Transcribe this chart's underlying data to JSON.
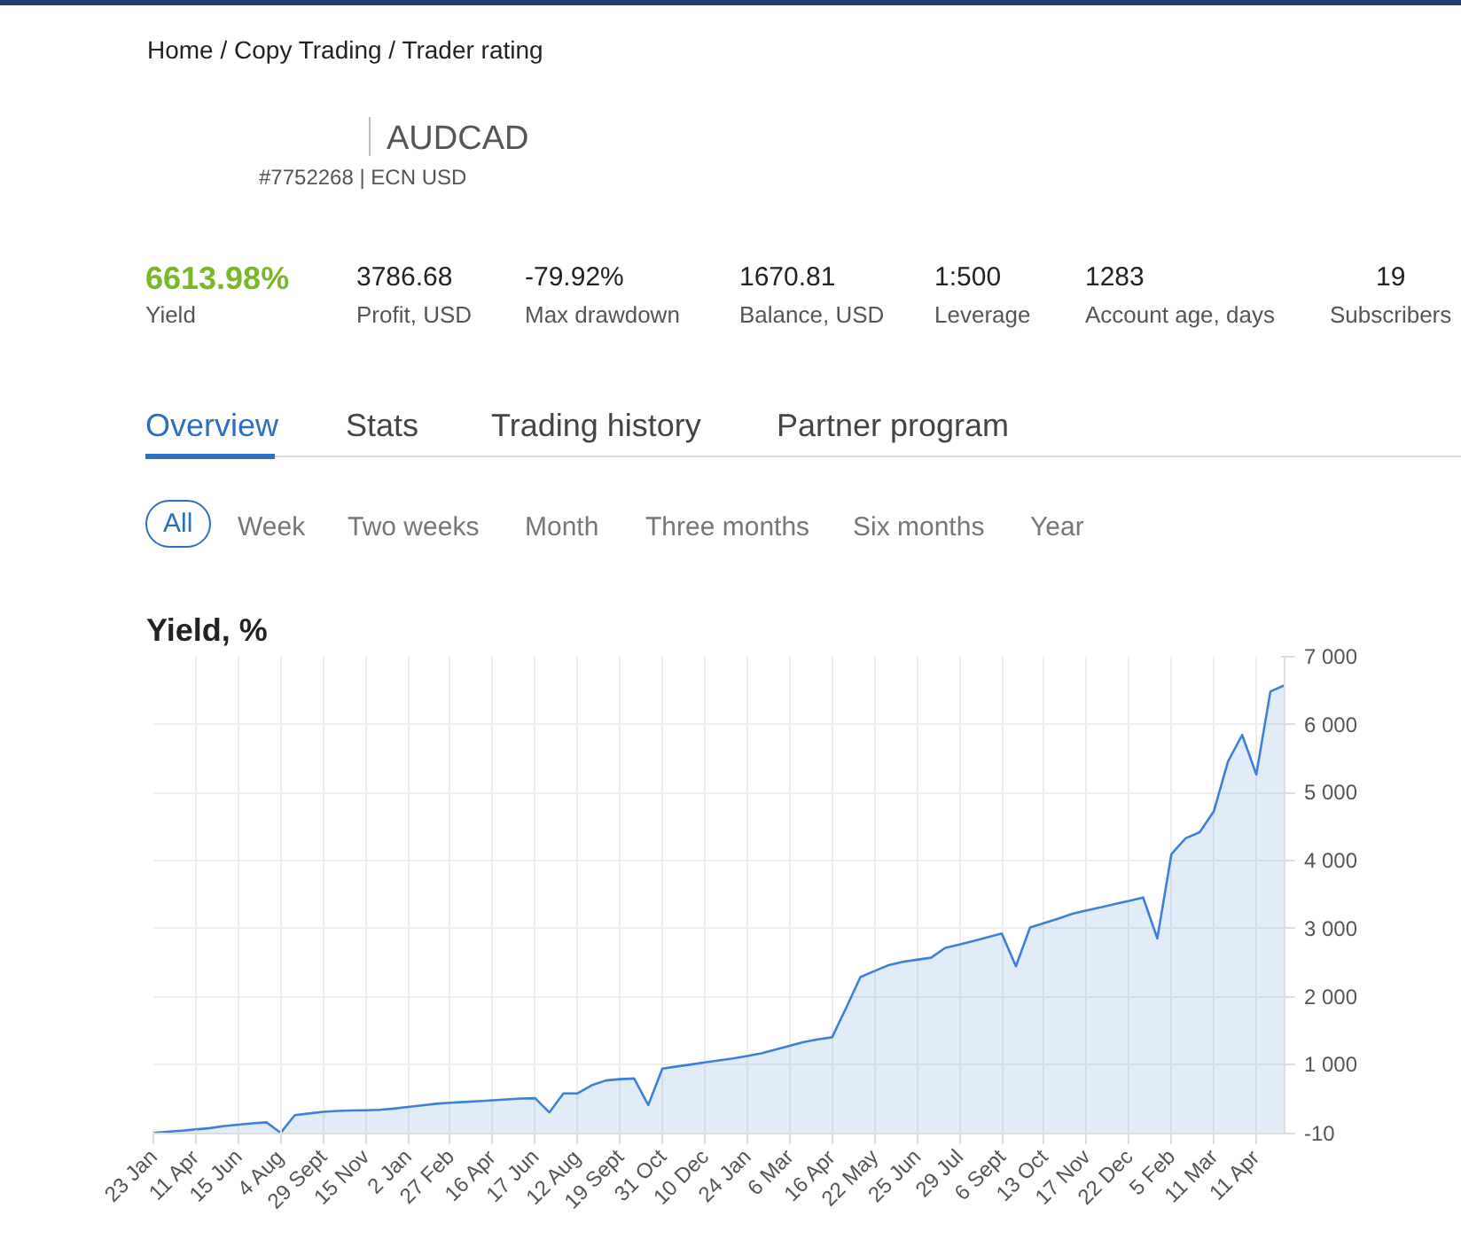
{
  "chart_data": {
    "type": "area",
    "title": "Yield, %",
    "annotations": [
      "Home / Copy Trading / Trader rating",
      "AUDCAD",
      "#7752268 | ECN USD",
      "6613.98%",
      "Yield",
      "3786.68",
      "Profit, USD",
      "-79.92%",
      "Max drawdown",
      "1670.81",
      "Balance, USD",
      "1:500",
      "Leverage",
      "1283",
      "Account age, days",
      "19",
      "Subscribers",
      "Overview",
      "Stats",
      "Trading history",
      "Partner program",
      "All",
      "Week",
      "Two weeks",
      "Month",
      "Three months",
      "Six months",
      "Year"
    ],
    "categories": [
      "23 Jan",
      null,
      null,
      "11 Apr",
      null,
      null,
      "15 Jun",
      null,
      null,
      "4 Aug",
      null,
      null,
      "29 Sept",
      null,
      null,
      "15 Nov",
      null,
      null,
      "2 Jan",
      null,
      null,
      "27 Feb",
      null,
      null,
      "16 Apr",
      null,
      null,
      "17 Jun",
      null,
      null,
      "12 Aug",
      null,
      null,
      "19 Sept",
      null,
      null,
      "31 Oct",
      null,
      null,
      "10 Dec",
      null,
      null,
      "24 Jan",
      null,
      null,
      "6 Mar",
      null,
      null,
      "16 Apr",
      null,
      null,
      "22 May",
      null,
      null,
      "25 Jun",
      null,
      null,
      "29 Jul",
      null,
      null,
      "6 Sept",
      null,
      null,
      "13 Oct",
      null,
      null,
      "17 Nov",
      null,
      null,
      "22 Dec",
      null,
      null,
      "5 Feb",
      null,
      null,
      "11 Mar",
      null,
      null,
      "11 Apr",
      null,
      null
    ],
    "series": [
      {
        "color": "#3d7fd9",
        "values": [
          0,
          17,
          33,
          50,
          70,
          100,
          120,
          140,
          155,
          0,
          260,
          285,
          310,
          322,
          328,
          333,
          338,
          356,
          380,
          404,
          428,
          442,
          454,
          466,
          478,
          492,
          505,
          510,
          300,
          580,
          580,
          700,
          770,
          790,
          800,
          410,
          945,
          975,
          1005,
          1035,
          1065,
          1095,
          1130,
          1170,
          1225,
          1280,
          1335,
          1375,
          1405,
          1840,
          2290,
          2380,
          2465,
          2515,
          2545,
          2575,
          2720,
          2770,
          2820,
          2875,
          2930,
          2450,
          3020,
          3085,
          3150,
          3220,
          3270,
          3315,
          3365,
          3410,
          3460,
          2860,
          4100,
          4330,
          4420,
          4730,
          5460,
          5850,
          5270,
          6490,
          6580
        ]
      }
    ],
    "ylim": [
      -10,
      7000
    ],
    "yticks": [
      -10,
      {
        "value": 1000,
        "label": "1 000"
      },
      {
        "value": 2000,
        "label": "2 000"
      },
      {
        "value": 3000,
        "label": "3 000"
      },
      {
        "value": 4000,
        "label": "4 000"
      },
      {
        "value": 5000,
        "label": "5 000"
      },
      {
        "value": 6000,
        "label": "6 000"
      },
      {
        "value": 7000,
        "label": "7 000"
      }
    ],
    "grid": true
  }
}
